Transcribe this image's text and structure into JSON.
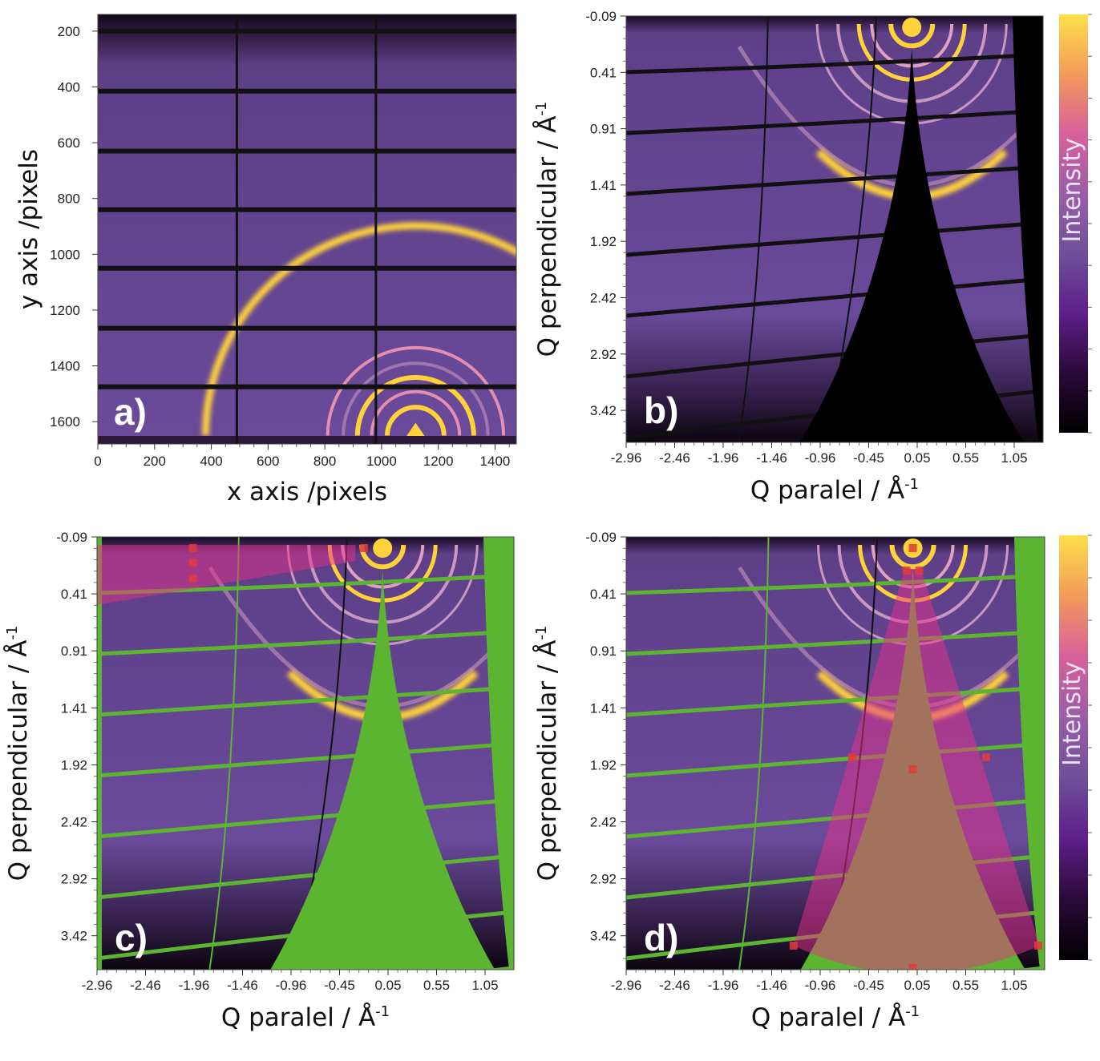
{
  "colors": {
    "background": "#6a4a9a",
    "ring": "#ffd23a",
    "detector_gap": "#111111",
    "mask_green": "#5cb531",
    "mask_pink": "#e8308a",
    "marker_red": "#e23a3a",
    "colormap": [
      "#000000",
      "#2a0a38",
      "#5e1f8a",
      "#6f4f9a",
      "#9a5ea8",
      "#d8609a",
      "#f29a5a",
      "#ffe04a"
    ]
  },
  "chart_data": [
    {
      "panel": "a)",
      "type": "heatmap",
      "description": "raw 2D detector image",
      "xlabel": "x axis /pixels",
      "ylabel": "y axis /pixels",
      "xlim": [
        0,
        1475
      ],
      "ylim": [
        1680,
        140
      ],
      "x_ticks": [
        "0",
        "200",
        "400",
        "600",
        "800",
        "1000",
        "1200",
        "1400"
      ],
      "y_ticks": [
        "200",
        "400",
        "600",
        "800",
        "1000",
        "1200",
        "1400",
        "1600"
      ],
      "beam_center": [
        1120,
        1650
      ],
      "module_gaps_x": [
        490,
        980
      ],
      "module_gaps_y": [
        200,
        415,
        630,
        840,
        1050,
        1265,
        1475
      ],
      "rings": [
        {
          "radius": 100,
          "intensity": "high"
        },
        {
          "radius": 155,
          "intensity": "medium"
        },
        {
          "radius": 205,
          "intensity": "high"
        },
        {
          "radius": 255,
          "intensity": "low"
        },
        {
          "radius": 310,
          "intensity": "medium"
        },
        {
          "radius": 740,
          "intensity": "high"
        }
      ]
    },
    {
      "panel": "b)",
      "type": "heatmap",
      "description": "reciprocal space map",
      "xlabel": "Q paralel / Å",
      "xlabel_sup": "-1",
      "ylabel": "Q perpendicular / Å",
      "ylabel_sup": "-1",
      "xlim": [
        -2.96,
        1.3
      ],
      "ylim": [
        -0.09,
        3.85
      ],
      "x_ticks": [
        "-2.96",
        "-2.46",
        "-1.96",
        "-1.46",
        "-0.96",
        "-0.45",
        "0.05",
        "0.55",
        "1.05"
      ],
      "y_ticks": [
        "-0.09",
        "0.41",
        "0.91",
        "1.41",
        "1.92",
        "2.42",
        "2.92",
        "3.42"
      ],
      "colorbar_label": "Intensity"
    },
    {
      "panel": "c)",
      "type": "heatmap",
      "description": "reciprocal space map with green masks and pink rectangular ROI",
      "xlabel": "Q paralel / Å",
      "xlabel_sup": "-1",
      "ylabel": "Q perpendicular / Å",
      "ylabel_sup": "-1",
      "xlim": [
        -2.96,
        1.3
      ],
      "ylim": [
        -0.09,
        3.85
      ],
      "x_ticks": [
        "-2.96",
        "-2.46",
        "-1.96",
        "-1.46",
        "-0.96",
        "-0.45",
        "0.05",
        "0.55",
        "1.05"
      ],
      "y_ticks": [
        "-0.09",
        "0.41",
        "0.91",
        "1.41",
        "1.92",
        "2.42",
        "2.92",
        "3.42"
      ]
    },
    {
      "panel": "d)",
      "type": "heatmap",
      "description": "reciprocal space map with green masks and pink sector ROI",
      "xlabel": "Q paralel / Å",
      "xlabel_sup": "-1",
      "ylabel": "Q perpendicular / Å",
      "ylabel_sup": "-1",
      "xlim": [
        -2.96,
        1.3
      ],
      "ylim": [
        -0.09,
        3.85
      ],
      "x_ticks": [
        "-2.96",
        "-2.46",
        "-1.96",
        "-1.46",
        "-0.96",
        "-0.45",
        "0.05",
        "0.55",
        "1.05"
      ],
      "y_ticks": [
        "-0.09",
        "0.41",
        "0.91",
        "1.41",
        "1.92",
        "2.42",
        "2.92",
        "3.42"
      ],
      "colorbar_label": "Intensity"
    }
  ]
}
